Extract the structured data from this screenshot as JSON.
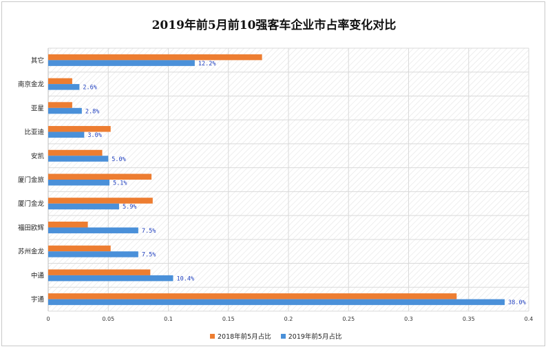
{
  "chart_data": {
    "type": "bar",
    "orientation": "horizontal",
    "title": "2019年前5月前10强客车企业市占率变化对比",
    "categories": [
      "宇通",
      "中通",
      "苏州金龙",
      "福田欧辉",
      "厦门金龙",
      "厦门金旅",
      "安凯",
      "比亚迪",
      "亚星",
      "南京金龙",
      "其它"
    ],
    "series": [
      {
        "name": "2018年前5月占比",
        "color": "#ed7d31",
        "values": [
          0.34,
          0.085,
          0.052,
          0.033,
          0.087,
          0.086,
          0.045,
          0.052,
          0.02,
          0.02,
          0.178
        ]
      },
      {
        "name": "2019年前5月占比",
        "color": "#4a90d9",
        "values": [
          0.38,
          0.104,
          0.075,
          0.075,
          0.059,
          0.051,
          0.05,
          0.03,
          0.028,
          0.026,
          0.122
        ],
        "data_labels": [
          "38.0%",
          "10.4%",
          "7.5%",
          "7.5%",
          "5.9%",
          "5.1%",
          "5.0%",
          "3.0%",
          "2.8%",
          "2.6%",
          "12.2%"
        ]
      }
    ],
    "xlim": [
      0,
      0.4
    ],
    "xticks": [
      "0",
      "0.05",
      "0.1",
      "0.15",
      "0.2",
      "0.25",
      "0.3",
      "0.35",
      "0.4"
    ],
    "grid": "vertical",
    "legend": "bottom"
  }
}
